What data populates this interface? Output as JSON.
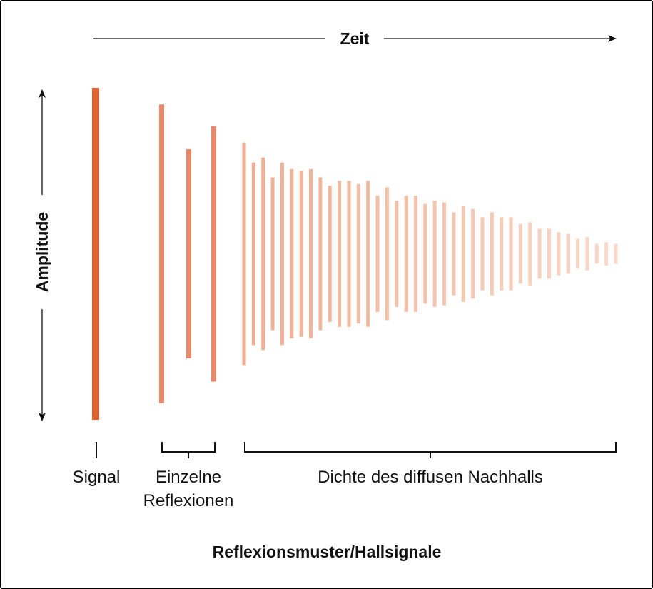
{
  "axes": {
    "time_label": "Zeit",
    "amplitude_label": "Amplitude"
  },
  "groups": {
    "signal": "Signal",
    "reflections_line1": "Einzelne",
    "reflections_line2": "Reflexionen",
    "diffuse": "Dichte des diffusen Nachhalls"
  },
  "title": "Reflexionsmuster/Hallsignale",
  "colors": {
    "signal": "#e0622f",
    "reflections": "#e8896a",
    "diffuse_start": "#efae91",
    "diffuse_end": "#f8d9cb"
  },
  "amplitudes": {
    "signal": [
      1.0
    ],
    "reflections": [
      0.9,
      0.63,
      0.77
    ],
    "diffuse": [
      0.67,
      0.55,
      0.58,
      0.46,
      0.55,
      0.51,
      0.5,
      0.51,
      0.46,
      0.41,
      0.44,
      0.44,
      0.42,
      0.44,
      0.35,
      0.4,
      0.32,
      0.35,
      0.35,
      0.3,
      0.32,
      0.31,
      0.25,
      0.29,
      0.27,
      0.22,
      0.25,
      0.22,
      0.22,
      0.18,
      0.19,
      0.15,
      0.15,
      0.13,
      0.12,
      0.09,
      0.1,
      0.06,
      0.07,
      0.06
    ]
  }
}
